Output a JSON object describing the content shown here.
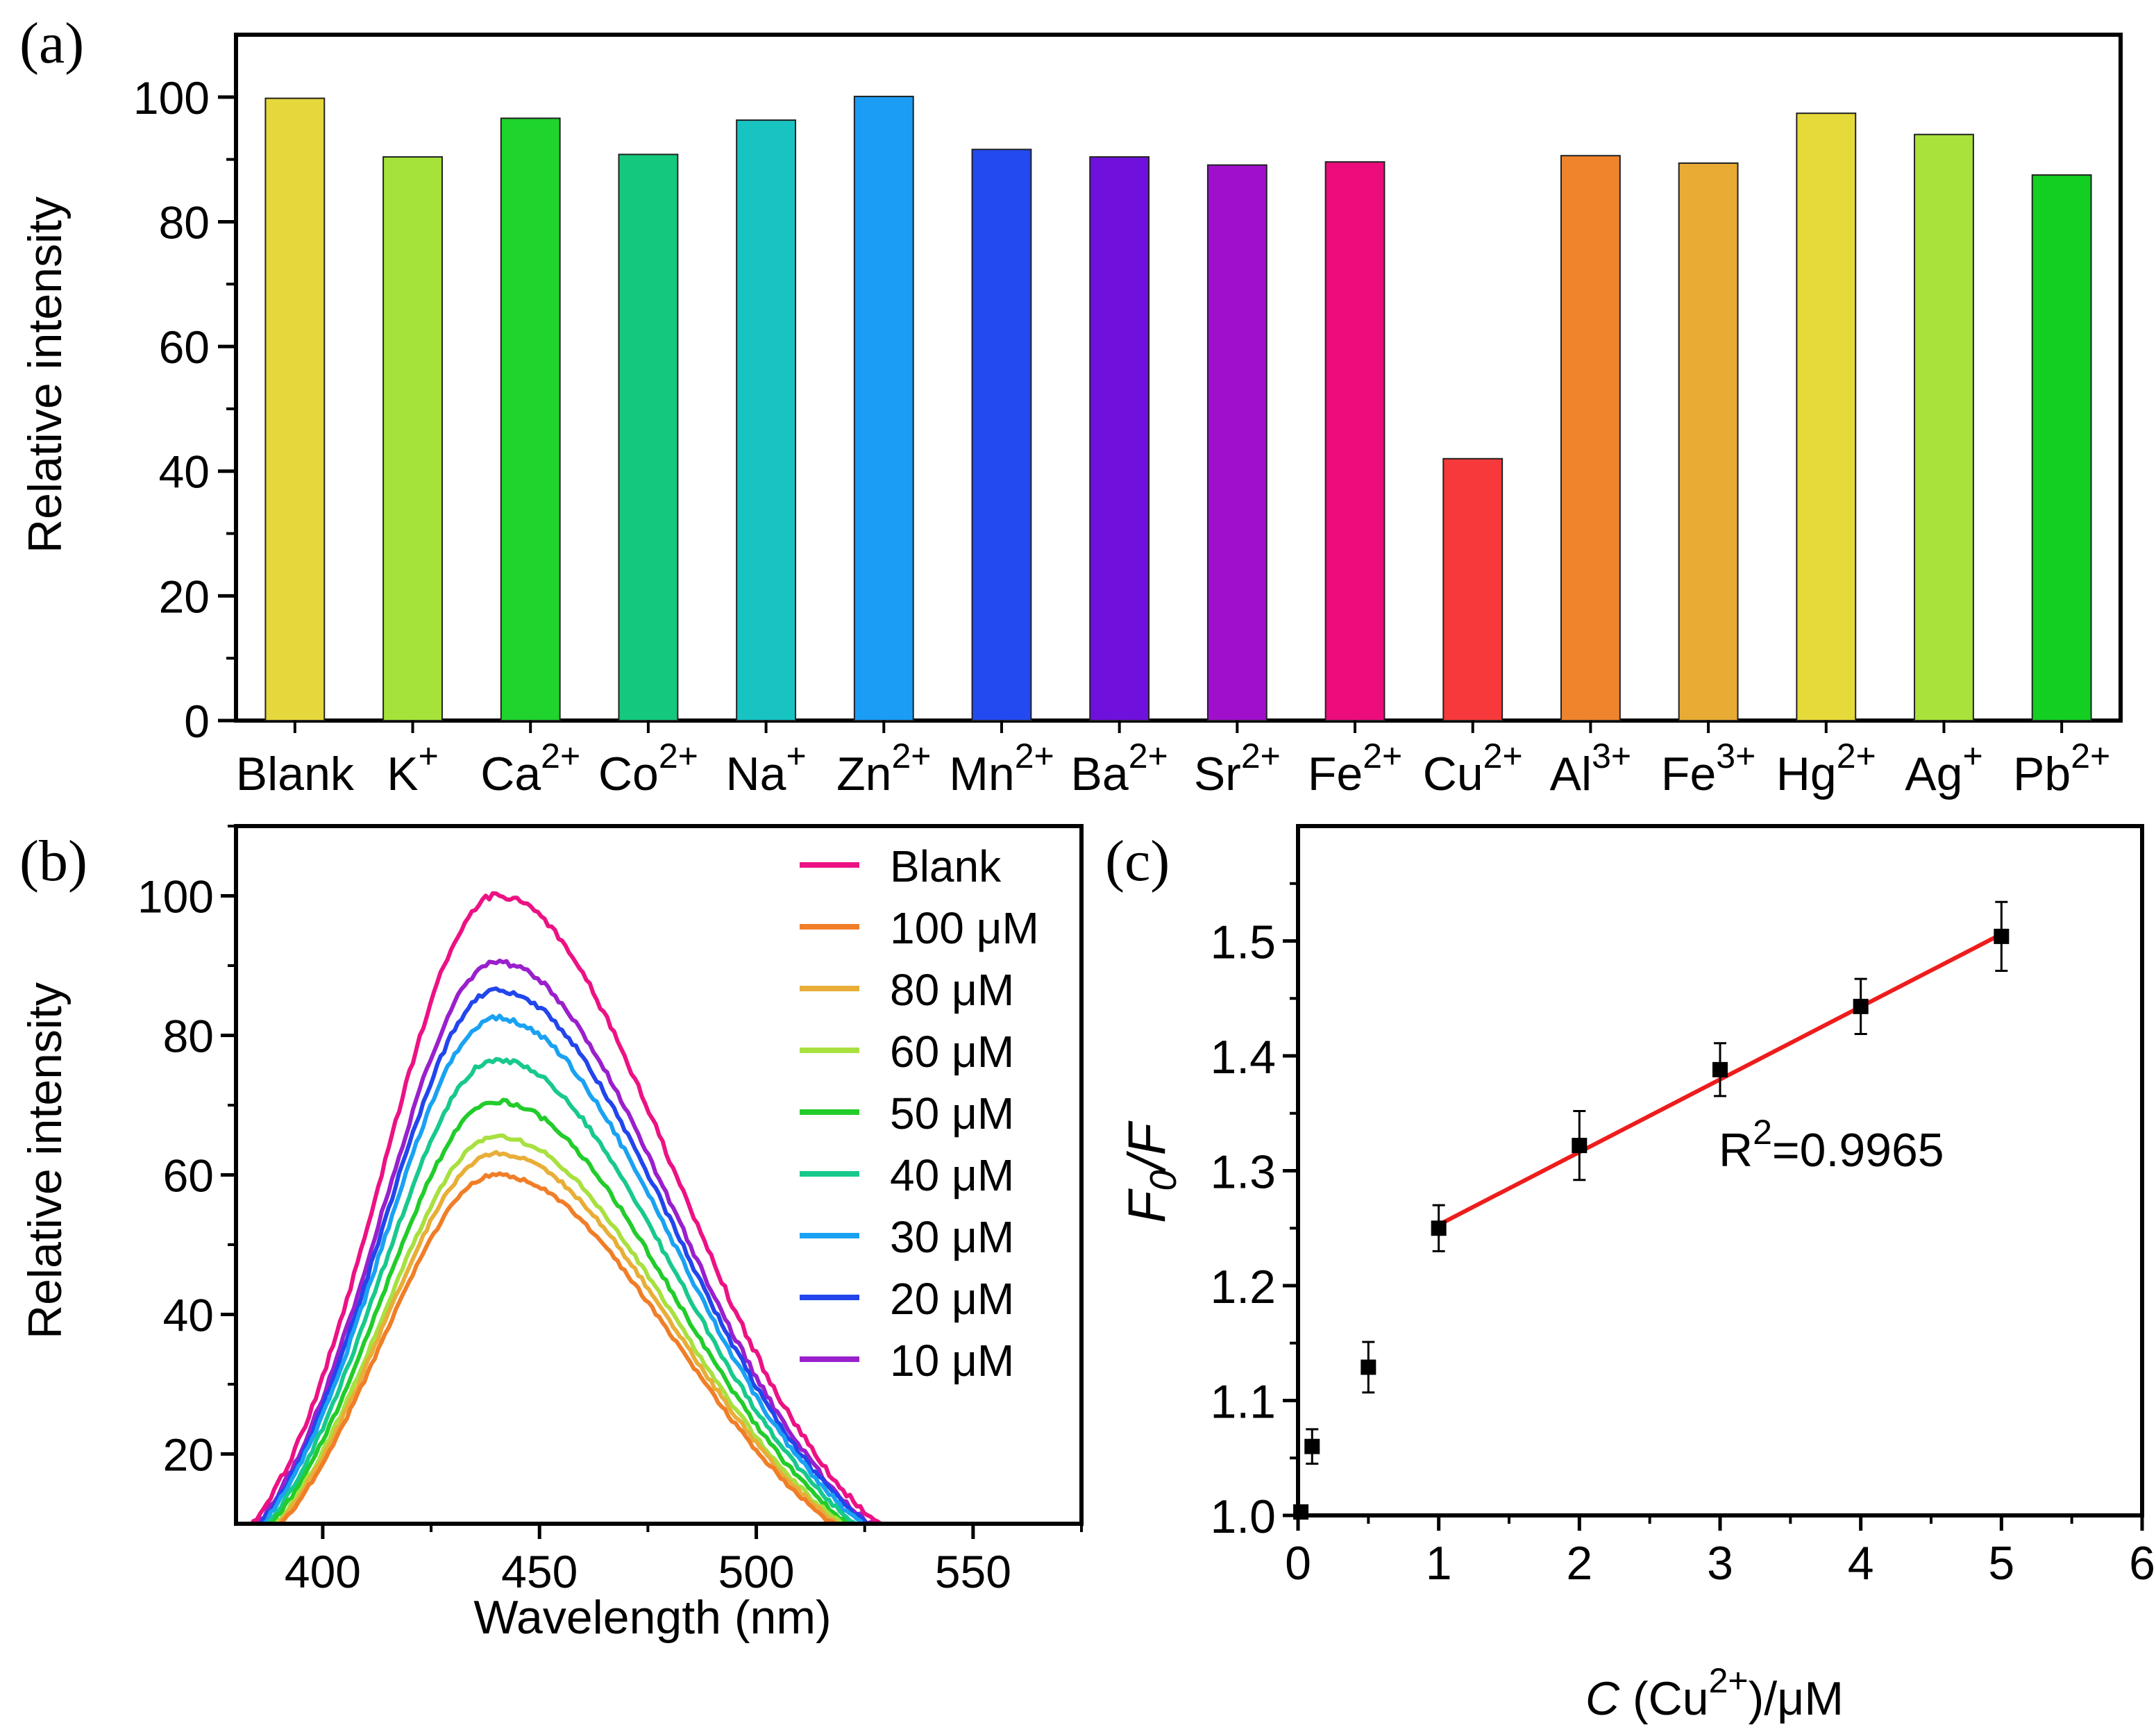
{
  "chart_data": [
    {
      "id": "a",
      "type": "bar",
      "panel_label": "(a)",
      "ylabel": "Relative intensity",
      "xlabel": "",
      "ylim": [
        0,
        110
      ],
      "yticks": [
        0,
        20,
        40,
        60,
        80,
        100
      ],
      "categories": [
        {
          "base": "Blank",
          "sup": ""
        },
        {
          "base": "K",
          "sup": "+"
        },
        {
          "base": "Ca",
          "sup": "2+"
        },
        {
          "base": "Co",
          "sup": "2+"
        },
        {
          "base": "Na",
          "sup": "+"
        },
        {
          "base": "Zn",
          "sup": "2+"
        },
        {
          "base": "Mn",
          "sup": "2+"
        },
        {
          "base": "Ba",
          "sup": "2+"
        },
        {
          "base": "Sr",
          "sup": "2+"
        },
        {
          "base": "Fe",
          "sup": "2+"
        },
        {
          "base": "Cu",
          "sup": "2+"
        },
        {
          "base": "Al",
          "sup": "3+"
        },
        {
          "base": "Fe",
          "sup": "3+"
        },
        {
          "base": "Hg",
          "sup": "2+"
        },
        {
          "base": "Ag",
          "sup": "+"
        },
        {
          "base": "Pb",
          "sup": "2+"
        }
      ],
      "values": [
        99.8,
        90.4,
        96.6,
        90.8,
        96.3,
        100.1,
        91.6,
        90.4,
        89.1,
        89.6,
        42.0,
        90.6,
        89.4,
        97.4,
        94.0,
        87.5
      ],
      "colors": [
        "#e6d83c",
        "#a5e33a",
        "#1fd42c",
        "#14c97d",
        "#17c4c2",
        "#1b9cf5",
        "#2349f0",
        "#7010dc",
        "#a010cc",
        "#ec0c7c",
        "#f7393b",
        "#f0842c",
        "#e8ab34",
        "#e5da3a",
        "#a8e23a",
        "#12cf22"
      ]
    },
    {
      "id": "b",
      "type": "line",
      "panel_label": "(b)",
      "xlabel": "Wavelength (nm)",
      "ylabel": "Relative intensity",
      "xlim": [
        380,
        575
      ],
      "ylim": [
        10,
        110
      ],
      "xticks": [
        400,
        450,
        500,
        550
      ],
      "yticks": [
        20,
        40,
        60,
        80,
        100
      ],
      "peak_wavelength": 440,
      "series": [
        {
          "name": "Blank",
          "peak": 100,
          "color": "#ec1284"
        },
        {
          "name": "100 μM",
          "peak": 60,
          "color": "#f07e28"
        },
        {
          "name": "80 μM",
          "peak": 63,
          "color": "#e8ae38"
        },
        {
          "name": "60 μM",
          "peak": 65.5,
          "color": "#a8e040"
        },
        {
          "name": "50 μM",
          "peak": 70.5,
          "color": "#22cc2a"
        },
        {
          "name": "40 μM",
          "peak": 76.5,
          "color": "#18c98c"
        },
        {
          "name": "30 μM",
          "peak": 82.5,
          "color": "#1aa2f2"
        },
        {
          "name": "20 μM",
          "peak": 86.5,
          "color": "#2246ec"
        },
        {
          "name": "10 μM",
          "peak": 90.5,
          "color": "#9a20cc"
        }
      ]
    },
    {
      "id": "c",
      "type": "scatter",
      "panel_label": "(c)",
      "xlabel": {
        "italic": "C",
        "text": " (Cu",
        "sup": "2+",
        "tail": ")/μM"
      },
      "ylabel": {
        "F": "F",
        "sub": "0",
        "rest": "/F"
      },
      "xlim": [
        0,
        6
      ],
      "ylim": [
        1.0,
        1.6
      ],
      "xticks": [
        0,
        1,
        2,
        3,
        4,
        5,
        6
      ],
      "yticks": [
        1.0,
        1.1,
        1.2,
        1.3,
        1.4,
        1.5
      ],
      "ytick_labels": [
        "1.0",
        "1.1",
        "1.2",
        "1.3",
        "1.4",
        "1.5"
      ],
      "x": [
        0.02,
        0.1,
        0.5,
        1,
        2,
        3,
        4,
        5
      ],
      "y": [
        1.003,
        1.06,
        1.129,
        1.25,
        1.322,
        1.388,
        1.443,
        1.504
      ],
      "yerr": [
        0.005,
        0.015,
        0.022,
        0.02,
        0.03,
        0.023,
        0.024,
        0.03
      ],
      "fit": {
        "x": [
          1,
          5
        ],
        "y": [
          1.253,
          1.506
        ],
        "color": "#ee1c1c"
      },
      "annotation": {
        "text": "R",
        "sup": "2",
        "tail": "=0.9965"
      }
    }
  ]
}
